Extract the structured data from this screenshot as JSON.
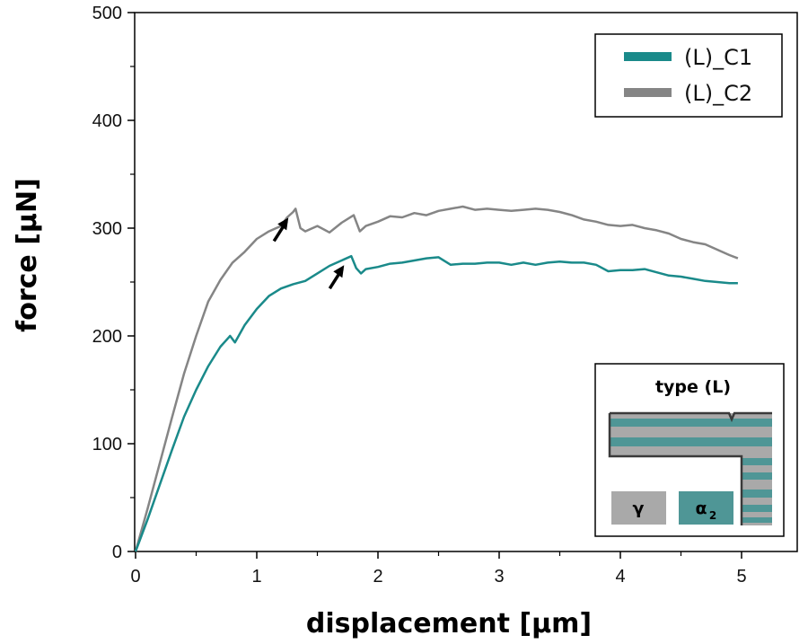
{
  "chart_data": {
    "type": "line",
    "xlabel": "displacement [µm]",
    "ylabel": "force [µN]",
    "xlim": [
      0,
      5.25
    ],
    "ylim": [
      0,
      500
    ],
    "xticks": [
      "0",
      "1",
      "2",
      "3",
      "4",
      "5"
    ],
    "yticks": [
      "0",
      "100",
      "200",
      "300",
      "400",
      "500"
    ],
    "legend_position": "top-right",
    "grid": false,
    "series": [
      {
        "name": "(L)_C1",
        "color": "#1a8a8a",
        "x": [
          0,
          0.1,
          0.2,
          0.3,
          0.4,
          0.5,
          0.6,
          0.7,
          0.78,
          0.82,
          0.85,
          0.9,
          1.0,
          1.1,
          1.2,
          1.3,
          1.4,
          1.5,
          1.6,
          1.7,
          1.78,
          1.82,
          1.86,
          1.9,
          2.0,
          2.1,
          2.2,
          2.3,
          2.4,
          2.5,
          2.6,
          2.7,
          2.8,
          2.9,
          3.0,
          3.1,
          3.2,
          3.3,
          3.4,
          3.5,
          3.6,
          3.7,
          3.8,
          3.9,
          4.0,
          4.1,
          4.2,
          4.3,
          4.4,
          4.5,
          4.6,
          4.7,
          4.8,
          4.9,
          4.97
        ],
        "y": [
          0,
          30,
          62,
          94,
          125,
          150,
          172,
          190,
          200,
          194,
          200,
          210,
          225,
          237,
          244,
          248,
          251,
          258,
          265,
          270,
          274,
          263,
          258,
          262,
          264,
          267,
          268,
          270,
          272,
          273,
          266,
          267,
          267,
          268,
          268,
          266,
          268,
          266,
          268,
          269,
          268,
          268,
          266,
          260,
          261,
          261,
          262,
          259,
          256,
          255,
          253,
          251,
          250,
          249,
          249
        ]
      },
      {
        "name": "(L)_C2",
        "color": "#858585",
        "x": [
          0,
          0.1,
          0.2,
          0.3,
          0.4,
          0.5,
          0.6,
          0.7,
          0.8,
          0.9,
          1.0,
          1.1,
          1.2,
          1.25,
          1.3,
          1.32,
          1.36,
          1.4,
          1.5,
          1.6,
          1.7,
          1.8,
          1.85,
          1.9,
          2.0,
          2.1,
          2.2,
          2.3,
          2.4,
          2.5,
          2.6,
          2.7,
          2.8,
          2.9,
          3.0,
          3.1,
          3.2,
          3.3,
          3.4,
          3.5,
          3.6,
          3.7,
          3.8,
          3.9,
          4.0,
          4.1,
          4.2,
          4.3,
          4.4,
          4.5,
          4.6,
          4.7,
          4.8,
          4.9,
          4.97
        ],
        "y": [
          0,
          40,
          82,
          124,
          165,
          200,
          232,
          252,
          268,
          278,
          290,
          297,
          302,
          310,
          315,
          318,
          300,
          297,
          302,
          296,
          305,
          312,
          297,
          302,
          306,
          311,
          310,
          314,
          312,
          316,
          318,
          320,
          317,
          318,
          317,
          316,
          317,
          318,
          317,
          315,
          312,
          308,
          306,
          303,
          302,
          303,
          300,
          298,
          295,
          290,
          287,
          285,
          280,
          275,
          272
        ]
      }
    ],
    "annotations": [
      {
        "type": "arrow",
        "series": "(L)_C2",
        "x": 1.32,
        "y": 318
      },
      {
        "type": "arrow",
        "series": "(L)_C1",
        "x": 1.78,
        "y": 274
      }
    ]
  },
  "inset": {
    "title": "type (L)",
    "phase_gamma_label": "γ",
    "phase_alpha_label": "α",
    "phase_alpha_subscript": "2",
    "gamma_color": "#a9a9a9",
    "alpha_color": "#4f9696"
  }
}
